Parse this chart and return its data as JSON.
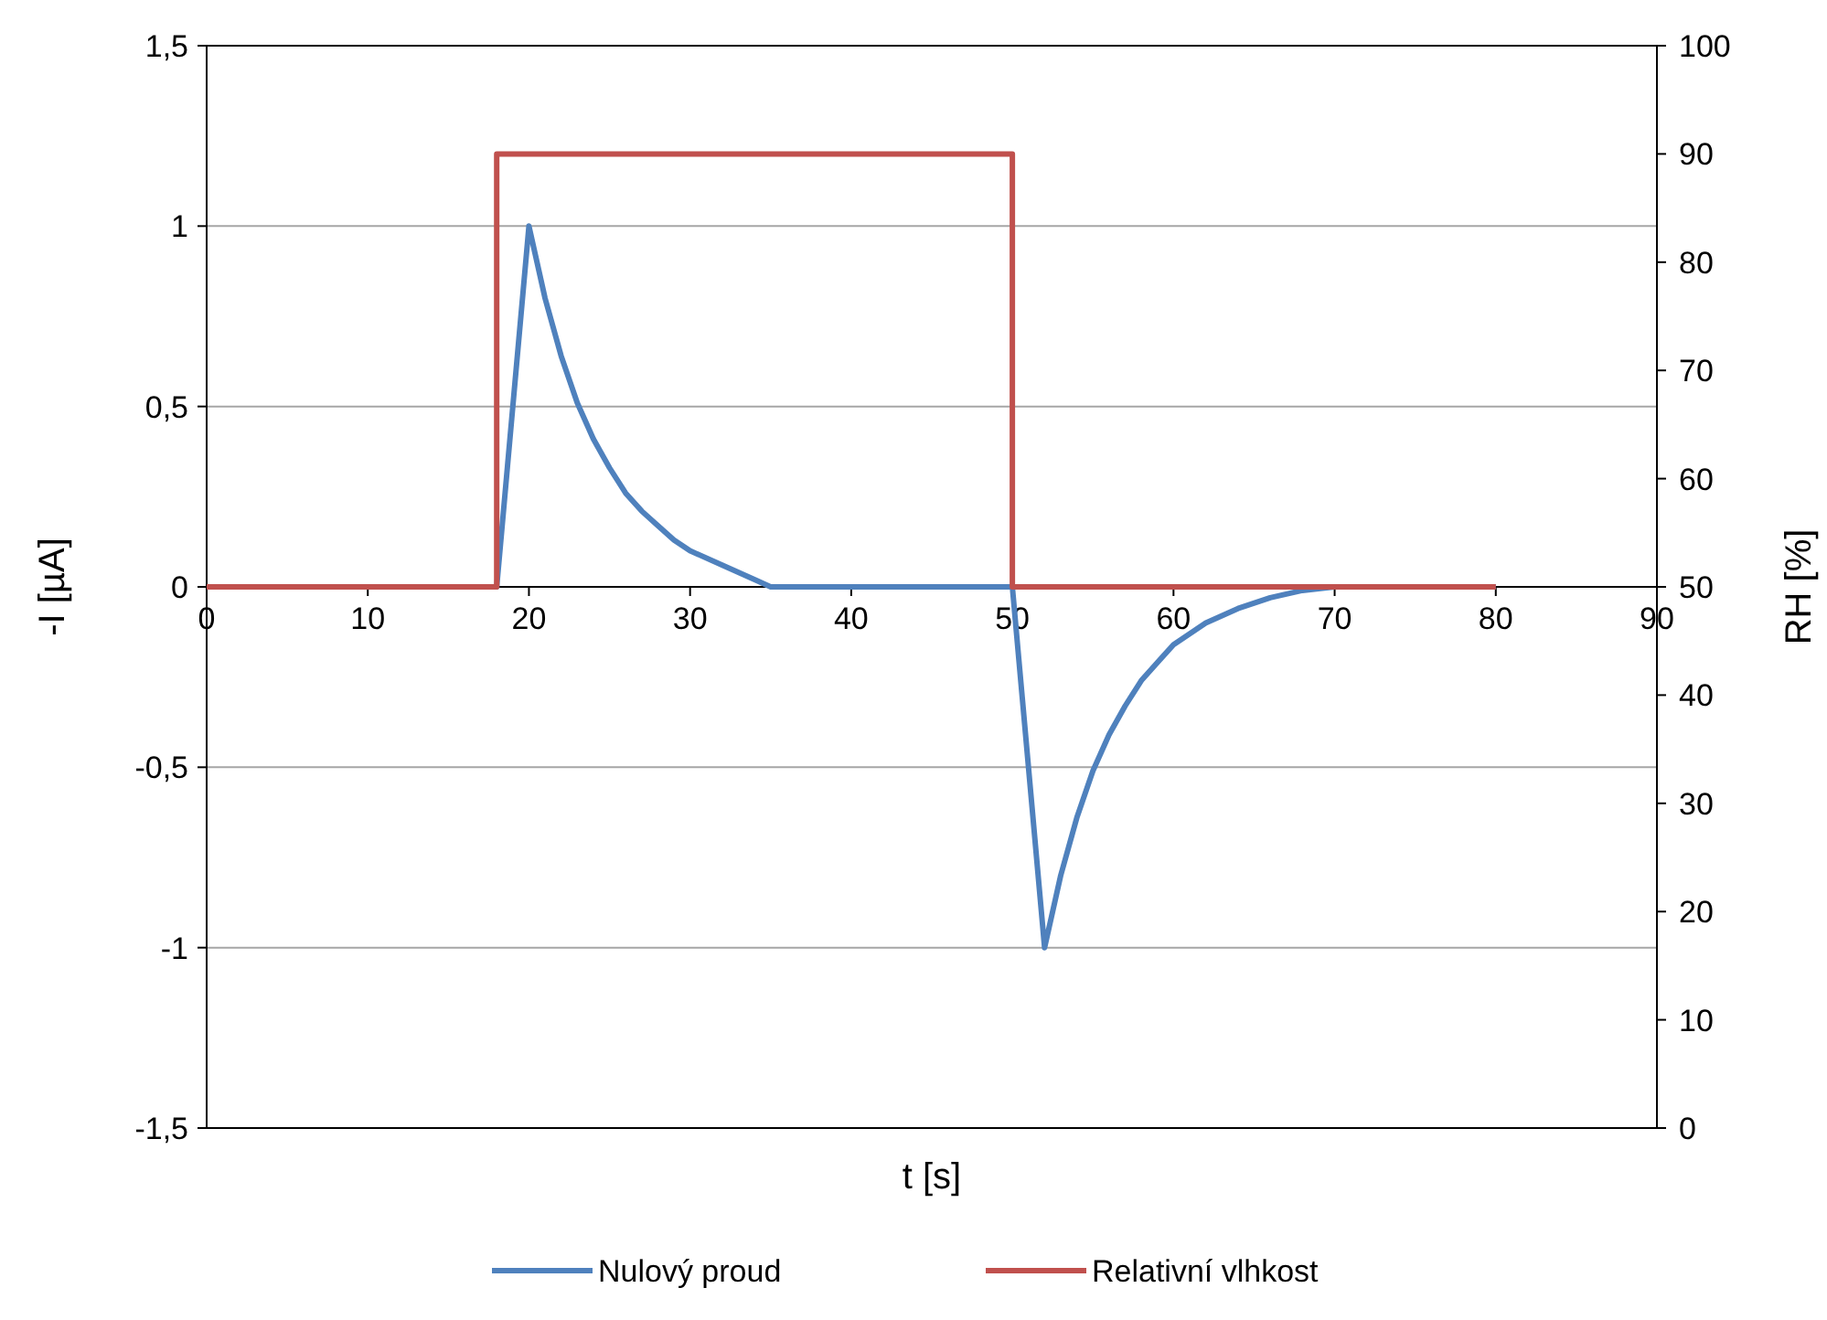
{
  "chart_data": {
    "type": "line",
    "xlabel": "t [s]",
    "ylabel": "-I [µA]",
    "y2label": "RH [%]",
    "xlim": [
      0,
      90
    ],
    "xticks": [
      0,
      10,
      20,
      30,
      40,
      50,
      60,
      70,
      80,
      90
    ],
    "ylim": [
      -1.5,
      1.5
    ],
    "yticks": [
      {
        "value": -1.5,
        "label": "-1,5"
      },
      -1,
      {
        "value": -0.5,
        "label": "-0,5"
      },
      0,
      {
        "value": 0.5,
        "label": "0,5"
      },
      1,
      {
        "value": 1.5,
        "label": "1,5"
      }
    ],
    "y2lim": [
      0,
      100
    ],
    "y2ticks": [
      0,
      10,
      20,
      30,
      40,
      50,
      60,
      70,
      80,
      90,
      100
    ],
    "grid": "y",
    "legend": "bottom",
    "marker": "none",
    "line_style": "solid",
    "series": [
      {
        "name": "Nulový proud",
        "color": "#4f81bd",
        "x": [
          0,
          18,
          20,
          21,
          22,
          23,
          24,
          25,
          26,
          27,
          28,
          29,
          30,
          32,
          34,
          35,
          50,
          52,
          53,
          54,
          55,
          56,
          57,
          58,
          60,
          62,
          64,
          66,
          68,
          70,
          80
        ],
        "values": [
          0,
          0,
          1,
          0.8,
          0.64,
          0.51,
          0.41,
          0.33,
          0.26,
          0.21,
          0.17,
          0.13,
          0.1,
          0.06,
          0.02,
          0,
          0,
          -1,
          -0.8,
          -0.64,
          -0.51,
          -0.41,
          -0.33,
          -0.26,
          -0.16,
          -0.1,
          -0.06,
          -0.03,
          -0.01,
          0,
          0
        ]
      },
      {
        "name": "Relativní vlhkost",
        "color": "#c0504d",
        "axis": "y2",
        "x": [
          0,
          18,
          18,
          50,
          50,
          80
        ],
        "values": [
          50,
          50,
          90,
          90,
          50,
          50
        ]
      }
    ]
  }
}
